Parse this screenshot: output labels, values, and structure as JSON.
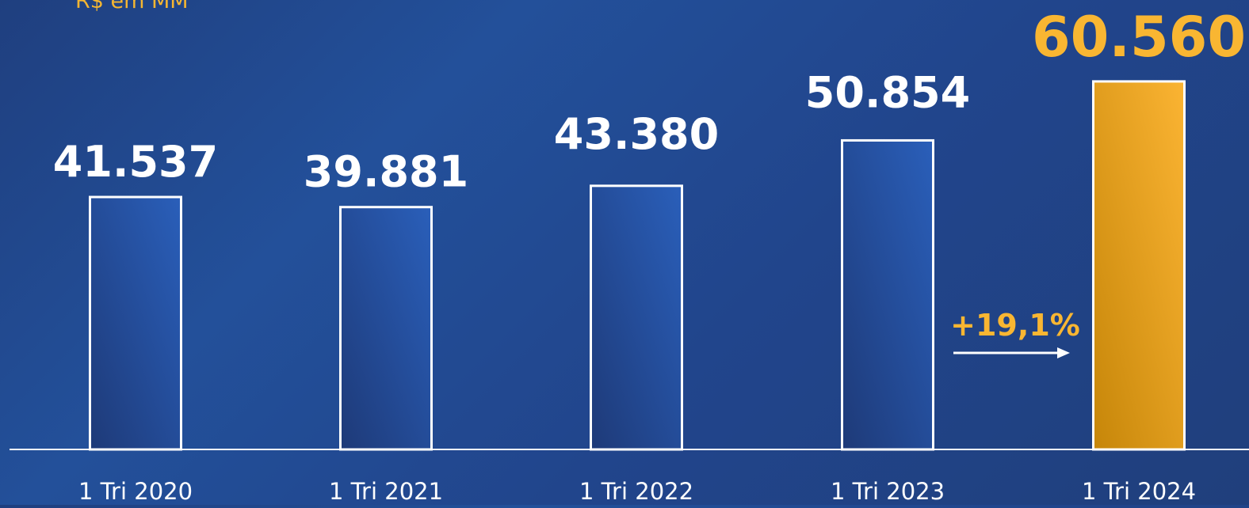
{
  "unit_caption": "R$ em MM",
  "colors": {
    "background": "#21458c",
    "bar_blue_light": "#2a5fba",
    "bar_blue_dark": "#1e3a78",
    "bar_gold_light": "#fbb433",
    "bar_gold_dark": "#c68609",
    "bar_outline": "#ffffff",
    "value_label": "#ffffff",
    "highlight_label": "#f9b632",
    "axis_line": "#ffffff",
    "category_label": "#ffffff"
  },
  "chart_data": {
    "type": "bar",
    "categories": [
      "1 Tri 2020",
      "1 Tri 2021",
      "1 Tri 2022",
      "1 Tri 2023",
      "1 Tri 2024"
    ],
    "values": [
      41537,
      39881,
      43380,
      50854,
      60560
    ],
    "value_labels": [
      "41.537",
      "39.881",
      "43.380",
      "50.854",
      "60.560"
    ],
    "highlighted_index": 4,
    "annotation": {
      "text": "+19,1%",
      "from_index": 3,
      "to_index": 4
    },
    "ylabel": "R$ em MM",
    "grid": false,
    "legend": "none"
  }
}
